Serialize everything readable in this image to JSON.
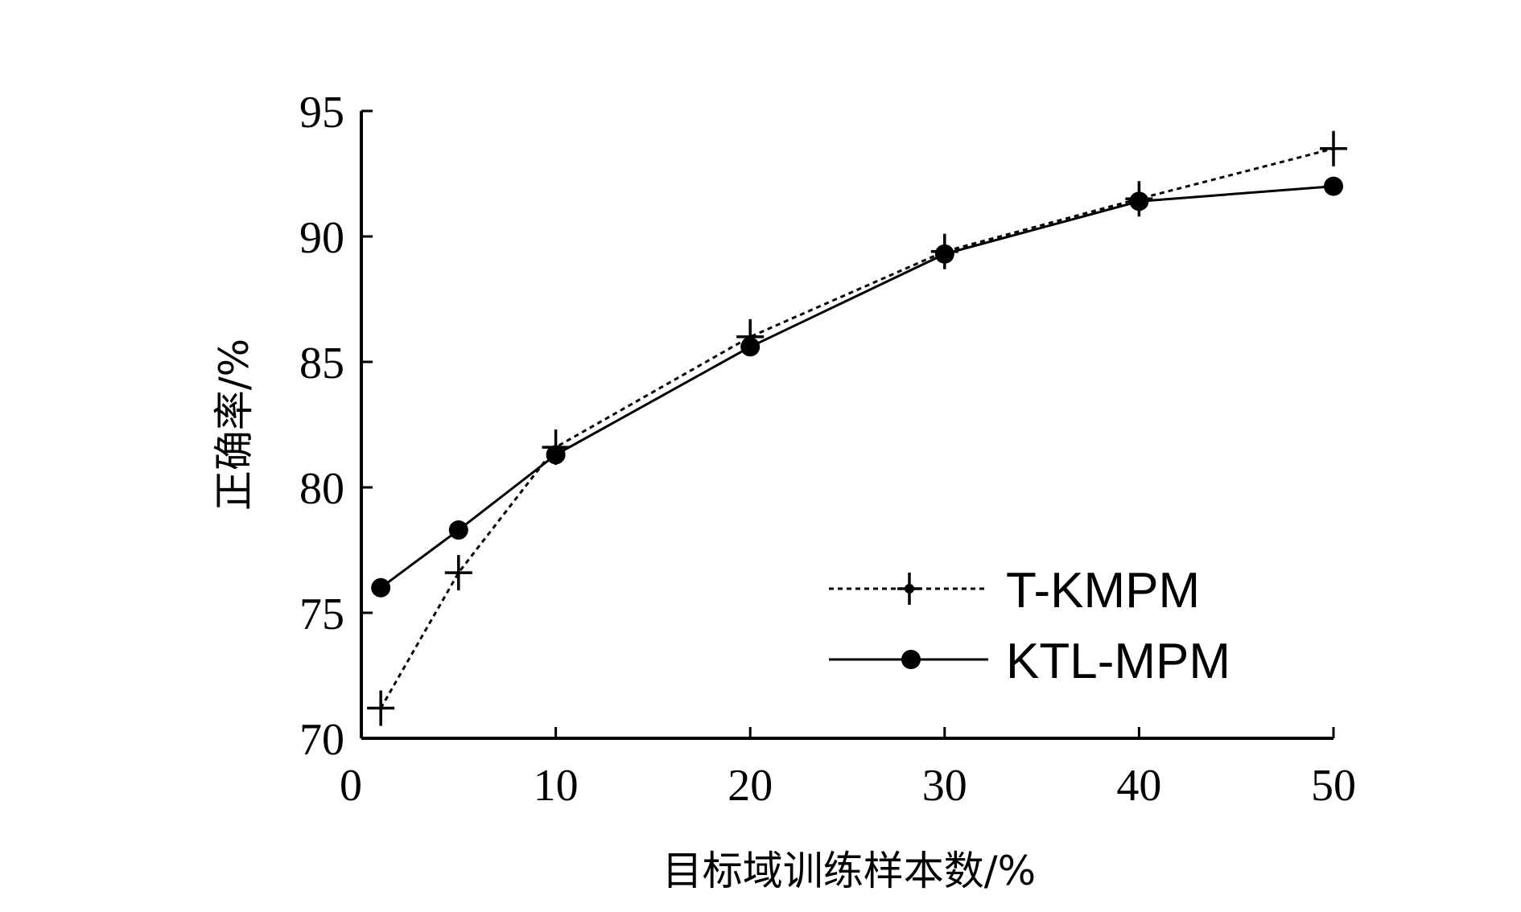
{
  "chart_data": {
    "type": "line",
    "title": "",
    "xlabel": "目标域训练样本数/%",
    "ylabel": "正确率/%",
    "xlim": [
      0,
      50
    ],
    "ylim": [
      70,
      95
    ],
    "xticks": [
      0,
      10,
      20,
      30,
      40,
      50
    ],
    "yticks": [
      70,
      75,
      80,
      85,
      90,
      95
    ],
    "grid": false,
    "legend_position": "bottom-right",
    "series": [
      {
        "name": "T-KMPM",
        "line_style": "dotted",
        "marker": "plus",
        "color": "#000000",
        "x": [
          1,
          5,
          10,
          20,
          30,
          40,
          50
        ],
        "y": [
          71.2,
          76.6,
          81.6,
          86.0,
          89.4,
          91.5,
          93.5
        ]
      },
      {
        "name": "KTL-MPM",
        "line_style": "solid",
        "marker": "circle",
        "color": "#000000",
        "x": [
          1,
          5,
          10,
          20,
          30,
          40,
          50
        ],
        "y": [
          76.0,
          78.3,
          81.3,
          85.6,
          89.3,
          91.4,
          92.0
        ]
      }
    ]
  }
}
